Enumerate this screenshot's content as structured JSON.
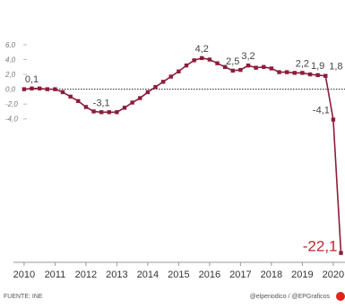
{
  "chart_data": {
    "type": "line",
    "x": [
      2010,
      2010.25,
      2010.5,
      2010.75,
      2011,
      2011.25,
      2011.5,
      2011.75,
      2012,
      2012.25,
      2012.5,
      2012.75,
      2013,
      2013.25,
      2013.5,
      2013.75,
      2014,
      2014.25,
      2014.5,
      2014.75,
      2015,
      2015.25,
      2015.5,
      2015.75,
      2016,
      2016.25,
      2016.5,
      2016.75,
      2017,
      2017.25,
      2017.5,
      2017.75,
      2018,
      2018.25,
      2018.5,
      2018.75,
      2019,
      2019.25,
      2019.5,
      2019.75,
      2020,
      2020.25
    ],
    "series": [
      {
        "color": "#8b1d3a",
        "values": [
          0.0,
          0.1,
          0.1,
          0.0,
          0.0,
          -0.4,
          -1.0,
          -1.6,
          -2.4,
          -3.0,
          -3.1,
          -3.1,
          -3.1,
          -2.5,
          -1.8,
          -1.2,
          -0.4,
          0.3,
          1.0,
          1.7,
          2.4,
          3.2,
          3.9,
          4.2,
          4.0,
          3.5,
          3.0,
          2.5,
          2.6,
          3.2,
          2.9,
          3.0,
          2.8,
          2.3,
          2.3,
          2.2,
          2.2,
          2.0,
          1.9,
          1.8,
          -4.1,
          -22.1
        ],
        "value_labels": [
          null,
          "0,1",
          null,
          null,
          null,
          null,
          null,
          null,
          null,
          null,
          "-3,1",
          null,
          null,
          null,
          null,
          null,
          null,
          null,
          null,
          null,
          null,
          null,
          null,
          "4,2",
          null,
          null,
          null,
          "2,5",
          null,
          "3,2",
          null,
          null,
          null,
          null,
          null,
          null,
          "2,2",
          null,
          "1,9",
          "1,8",
          "-4,1",
          "-22,1"
        ]
      }
    ],
    "xlim": [
      2009.8,
      2020.38
    ],
    "xticks": [
      2010,
      2011,
      2012,
      2013,
      2014,
      2015,
      2016,
      2017,
      2018,
      2019,
      2020
    ],
    "ylim": [
      -23,
      6.6
    ],
    "yticks": [
      {
        "value": 6,
        "label": "6,0"
      },
      {
        "value": 4,
        "label": "4,0"
      },
      {
        "value": 2,
        "label": "2,0"
      },
      {
        "value": 0,
        "label": "0,0"
      },
      {
        "value": -2,
        "label": "-2,0"
      },
      {
        "value": -4,
        "label": "-4,0"
      }
    ],
    "source": "FUENTE: INE",
    "credit": "@elperiodico / @EPGraficos"
  }
}
